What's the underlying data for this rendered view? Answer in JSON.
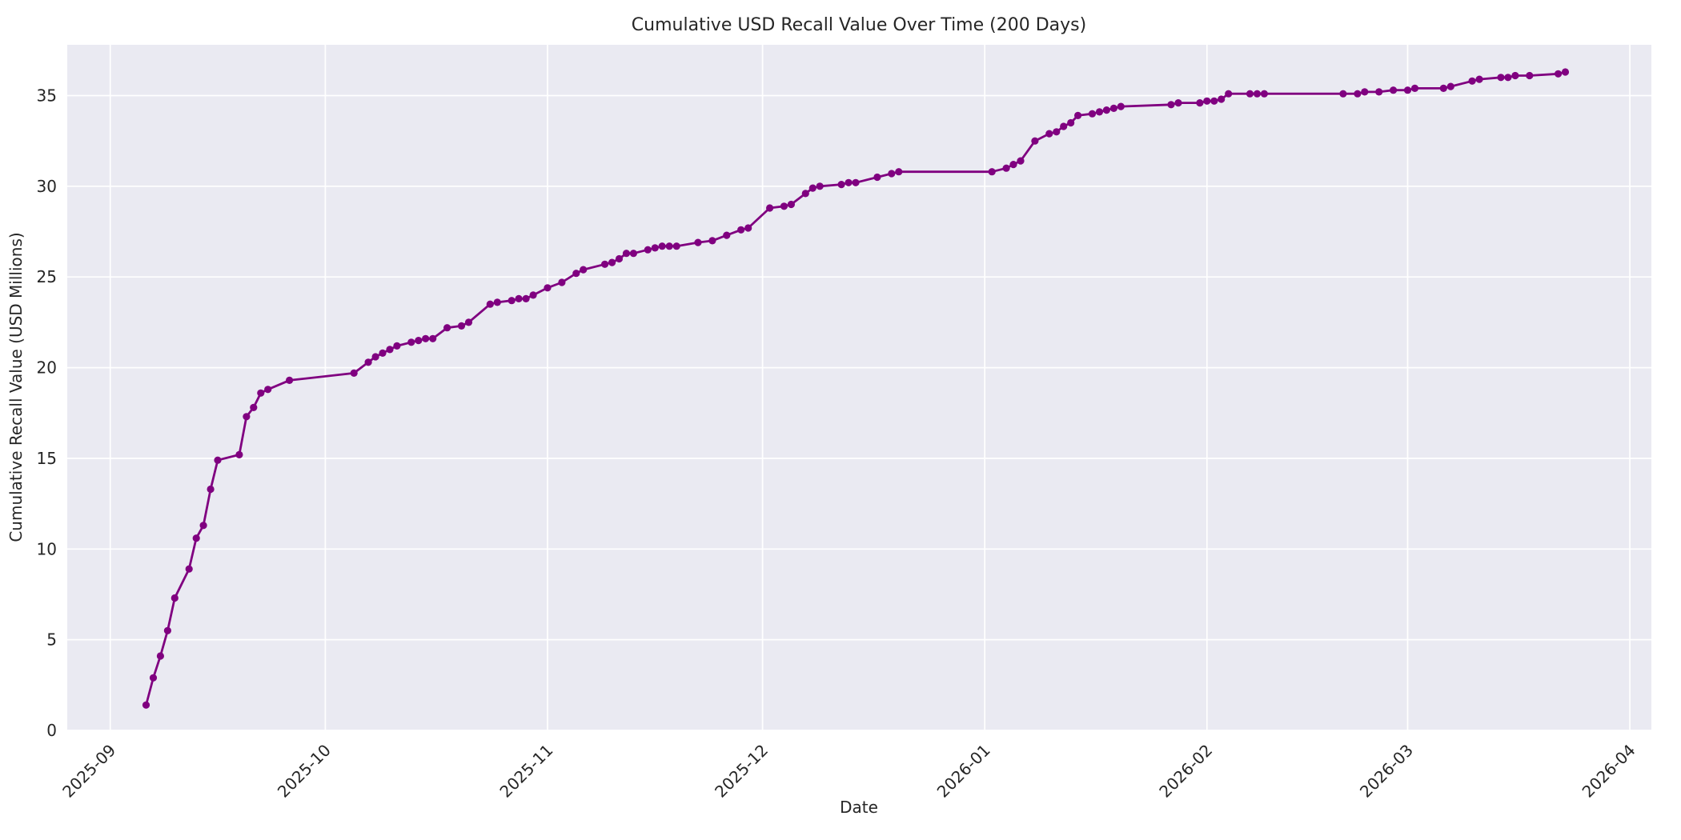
{
  "chart_data": {
    "type": "line",
    "title": "Cumulative USD Recall Value Over Time (200 Days)",
    "xlabel": "Date",
    "ylabel": "Cumulative Recall Value (USD Millions)",
    "x_tick_labels": [
      "2025-09",
      "2025-10",
      "2025-11",
      "2025-12",
      "2026-01",
      "2026-02",
      "2026-03",
      "2026-04"
    ],
    "y_ticks": [
      0,
      5,
      10,
      15,
      20,
      25,
      30,
      35
    ],
    "ylim": [
      0,
      37.8
    ],
    "xlim_dates": [
      "2025-08-26",
      "2026-04-04"
    ],
    "line_color": "#800080",
    "plot_bg": "#EAEAF2",
    "grid_color": "#FFFFFF",
    "grid": true,
    "markers": true,
    "legend": "none",
    "dates": [
      "2025-09-06",
      "2025-09-07",
      "2025-09-08",
      "2025-09-09",
      "2025-09-10",
      "2025-09-12",
      "2025-09-13",
      "2025-09-14",
      "2025-09-15",
      "2025-09-16",
      "2025-09-19",
      "2025-09-20",
      "2025-09-21",
      "2025-09-22",
      "2025-09-23",
      "2025-09-26",
      "2025-10-05",
      "2025-10-07",
      "2025-10-08",
      "2025-10-09",
      "2025-10-10",
      "2025-10-11",
      "2025-10-13",
      "2025-10-14",
      "2025-10-15",
      "2025-10-16",
      "2025-10-18",
      "2025-10-20",
      "2025-10-21",
      "2025-10-24",
      "2025-10-25",
      "2025-10-27",
      "2025-10-28",
      "2025-10-29",
      "2025-10-30",
      "2025-11-01",
      "2025-11-03",
      "2025-11-05",
      "2025-11-06",
      "2025-11-09",
      "2025-11-10",
      "2025-11-11",
      "2025-11-12",
      "2025-11-13",
      "2025-11-15",
      "2025-11-16",
      "2025-11-17",
      "2025-11-18",
      "2025-11-19",
      "2025-11-22",
      "2025-11-24",
      "2025-11-26",
      "2025-11-28",
      "2025-11-29",
      "2025-12-02",
      "2025-12-04",
      "2025-12-05",
      "2025-12-07",
      "2025-12-08",
      "2025-12-09",
      "2025-12-12",
      "2025-12-13",
      "2025-12-14",
      "2025-12-17",
      "2025-12-19",
      "2025-12-20",
      "2026-01-02",
      "2026-01-04",
      "2026-01-05",
      "2026-01-06",
      "2026-01-08",
      "2026-01-10",
      "2026-01-11",
      "2026-01-12",
      "2026-01-13",
      "2026-01-14",
      "2026-01-16",
      "2026-01-17",
      "2026-01-18",
      "2026-01-19",
      "2026-01-20",
      "2026-01-27",
      "2026-01-28",
      "2026-01-31",
      "2026-02-01",
      "2026-02-02",
      "2026-02-03",
      "2026-02-04",
      "2026-02-07",
      "2026-02-08",
      "2026-02-09",
      "2026-02-20",
      "2026-02-22",
      "2026-02-23",
      "2026-02-25",
      "2026-02-27",
      "2026-03-01",
      "2026-03-02",
      "2026-03-06",
      "2026-03-07",
      "2026-03-10",
      "2026-03-11",
      "2026-03-14",
      "2026-03-15",
      "2026-03-16",
      "2026-03-18",
      "2026-03-22",
      "2026-03-23"
    ],
    "values": [
      1.4,
      2.9,
      4.1,
      5.5,
      7.3,
      8.9,
      10.6,
      11.3,
      13.3,
      14.9,
      15.2,
      17.3,
      17.8,
      18.6,
      18.8,
      19.3,
      19.7,
      20.3,
      20.6,
      20.8,
      21.0,
      21.2,
      21.4,
      21.5,
      21.6,
      21.6,
      22.2,
      22.3,
      22.5,
      23.5,
      23.6,
      23.7,
      23.8,
      23.8,
      24.0,
      24.4,
      24.7,
      25.2,
      25.4,
      25.7,
      25.8,
      26.0,
      26.3,
      26.3,
      26.5,
      26.6,
      26.7,
      26.7,
      26.7,
      26.9,
      27.0,
      27.3,
      27.6,
      27.7,
      28.8,
      28.9,
      29.0,
      29.6,
      29.9,
      30.0,
      30.1,
      30.2,
      30.2,
      30.5,
      30.7,
      30.8,
      30.8,
      31.0,
      31.2,
      31.4,
      32.5,
      32.9,
      33.0,
      33.3,
      33.5,
      33.9,
      34.0,
      34.1,
      34.2,
      34.3,
      34.4,
      34.5,
      34.6,
      34.6,
      34.7,
      34.7,
      34.8,
      35.1,
      35.1,
      35.1,
      35.1,
      35.1,
      35.1,
      35.2,
      35.2,
      35.3,
      35.3,
      35.4,
      35.4,
      35.5,
      35.8,
      35.9,
      36.0,
      36.0,
      36.1,
      36.1,
      36.2,
      36.3
    ]
  }
}
